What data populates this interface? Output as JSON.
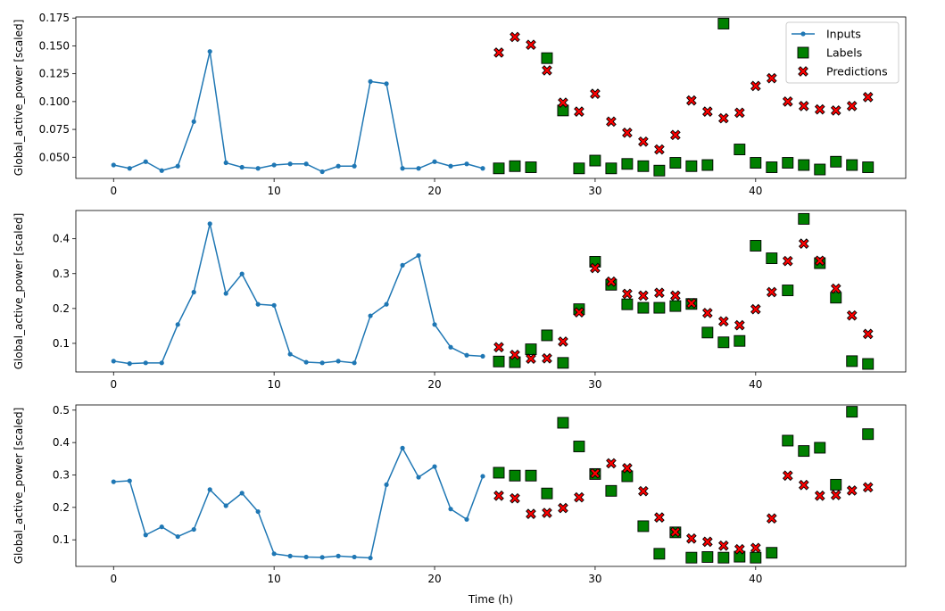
{
  "chart_data": [
    {
      "type": "line+scatter",
      "ylabel": "Global_active_power [scaled]",
      "xlabel": "",
      "xlim": [
        -2.35,
        49.35
      ],
      "ylim": [
        0.031,
        0.176
      ],
      "xticks": [
        0,
        10,
        20,
        30,
        40
      ],
      "yticks": [
        0.05,
        0.075,
        0.1,
        0.125,
        0.15,
        0.175
      ],
      "ytick_labels": [
        "0.050",
        "0.075",
        "0.100",
        "0.125",
        "0.150",
        "0.175"
      ],
      "legend": {
        "position": "top-right",
        "entries": [
          "Inputs",
          "Labels",
          "Predictions"
        ]
      },
      "series": [
        {
          "name": "Inputs",
          "kind": "line",
          "color": "#1f77b4",
          "x": [
            0,
            1,
            2,
            3,
            4,
            5,
            6,
            7,
            8,
            9,
            10,
            11,
            12,
            13,
            14,
            15,
            16,
            17,
            18,
            19,
            20,
            21,
            22,
            23
          ],
          "y": [
            0.043,
            0.04,
            0.046,
            0.038,
            0.042,
            0.082,
            0.145,
            0.045,
            0.041,
            0.04,
            0.043,
            0.044,
            0.044,
            0.037,
            0.042,
            0.042,
            0.118,
            0.116,
            0.04,
            0.04,
            0.046,
            0.042,
            0.044,
            0.04
          ]
        },
        {
          "name": "Labels",
          "kind": "square",
          "color": "#008000",
          "x": [
            24,
            25,
            26,
            27,
            28,
            29,
            30,
            31,
            32,
            33,
            34,
            35,
            36,
            37,
            38,
            39,
            40,
            41,
            42,
            43,
            44,
            45,
            46,
            47
          ],
          "y": [
            0.04,
            0.042,
            0.041,
            0.139,
            0.092,
            0.04,
            0.047,
            0.04,
            0.044,
            0.042,
            0.038,
            0.045,
            0.042,
            0.043,
            0.17,
            0.057,
            0.045,
            0.041,
            0.045,
            0.043,
            0.039,
            0.046,
            0.043,
            0.041
          ]
        },
        {
          "name": "Predictions",
          "kind": "x",
          "color": "#ff0000",
          "x": [
            24,
            25,
            26,
            27,
            28,
            29,
            30,
            31,
            32,
            33,
            34,
            35,
            36,
            37,
            38,
            39,
            40,
            41,
            42,
            43,
            44,
            45,
            46,
            47
          ],
          "y": [
            0.144,
            0.158,
            0.151,
            0.128,
            0.099,
            0.091,
            0.107,
            0.082,
            0.072,
            0.064,
            0.057,
            0.07,
            0.101,
            0.091,
            0.085,
            0.09,
            0.114,
            0.121,
            0.1,
            0.096,
            0.093,
            0.092,
            0.096,
            0.104
          ]
        }
      ]
    },
    {
      "type": "line+scatter",
      "ylabel": "Global_active_power [scaled]",
      "xlabel": "",
      "xlim": [
        -2.35,
        49.35
      ],
      "ylim": [
        0.018,
        0.481
      ],
      "xticks": [
        0,
        10,
        20,
        30,
        40
      ],
      "yticks": [
        0.1,
        0.2,
        0.3,
        0.4
      ],
      "ytick_labels": [
        "0.1",
        "0.2",
        "0.3",
        "0.4"
      ],
      "series": [
        {
          "name": "Inputs",
          "kind": "line",
          "color": "#1f77b4",
          "x": [
            0,
            1,
            2,
            3,
            4,
            5,
            6,
            7,
            8,
            9,
            10,
            11,
            12,
            13,
            14,
            15,
            16,
            17,
            18,
            19,
            20,
            21,
            22,
            23
          ],
          "y": [
            0.049,
            0.042,
            0.044,
            0.044,
            0.154,
            0.247,
            0.443,
            0.243,
            0.299,
            0.212,
            0.209,
            0.069,
            0.046,
            0.044,
            0.049,
            0.044,
            0.179,
            0.212,
            0.324,
            0.352,
            0.154,
            0.089,
            0.066,
            0.063
          ]
        },
        {
          "name": "Labels",
          "kind": "square",
          "color": "#008000",
          "x": [
            24,
            25,
            26,
            27,
            28,
            29,
            30,
            31,
            32,
            33,
            34,
            35,
            36,
            37,
            38,
            39,
            40,
            41,
            42,
            43,
            44,
            45,
            46,
            47
          ],
          "y": [
            0.048,
            0.046,
            0.083,
            0.123,
            0.044,
            0.198,
            0.334,
            0.268,
            0.212,
            0.202,
            0.202,
            0.207,
            0.213,
            0.131,
            0.103,
            0.107,
            0.38,
            0.344,
            0.252,
            0.457,
            0.33,
            0.231,
            0.049,
            0.041
          ]
        },
        {
          "name": "Predictions",
          "kind": "x",
          "color": "#ff0000",
          "x": [
            24,
            25,
            26,
            27,
            28,
            29,
            30,
            31,
            32,
            33,
            34,
            35,
            36,
            37,
            38,
            39,
            40,
            41,
            42,
            43,
            44,
            45,
            46,
            47
          ],
          "y": [
            0.089,
            0.067,
            0.056,
            0.057,
            0.105,
            0.189,
            0.316,
            0.277,
            0.242,
            0.237,
            0.245,
            0.237,
            0.215,
            0.187,
            0.163,
            0.152,
            0.198,
            0.247,
            0.336,
            0.386,
            0.337,
            0.257,
            0.18,
            0.127
          ]
        }
      ]
    },
    {
      "type": "line+scatter",
      "ylabel": "Global_active_power [scaled]",
      "xlabel": "Time (h)",
      "xlim": [
        -2.35,
        49.35
      ],
      "ylim": [
        0.018,
        0.516
      ],
      "xticks": [
        0,
        10,
        20,
        30,
        40
      ],
      "yticks": [
        0.1,
        0.2,
        0.3,
        0.4,
        0.5
      ],
      "ytick_labels": [
        "0.1",
        "0.2",
        "0.3",
        "0.4",
        "0.5"
      ],
      "series": [
        {
          "name": "Inputs",
          "kind": "line",
          "color": "#1f77b4",
          "x": [
            0,
            1,
            2,
            3,
            4,
            5,
            6,
            7,
            8,
            9,
            10,
            11,
            12,
            13,
            14,
            15,
            16,
            17,
            18,
            19,
            20,
            21,
            22,
            23
          ],
          "y": [
            0.279,
            0.282,
            0.115,
            0.14,
            0.11,
            0.132,
            0.255,
            0.205,
            0.244,
            0.187,
            0.057,
            0.05,
            0.047,
            0.046,
            0.05,
            0.047,
            0.044,
            0.27,
            0.383,
            0.293,
            0.326,
            0.195,
            0.163,
            0.296
          ]
        },
        {
          "name": "Labels",
          "kind": "square",
          "color": "#008000",
          "x": [
            24,
            25,
            26,
            27,
            28,
            29,
            30,
            31,
            32,
            33,
            34,
            35,
            36,
            37,
            38,
            39,
            40,
            41,
            42,
            43,
            44,
            45,
            46,
            47
          ],
          "y": [
            0.307,
            0.298,
            0.298,
            0.243,
            0.461,
            0.388,
            0.303,
            0.251,
            0.296,
            0.142,
            0.057,
            0.123,
            0.045,
            0.047,
            0.045,
            0.048,
            0.045,
            0.06,
            0.406,
            0.374,
            0.384,
            0.27,
            0.495,
            0.426
          ]
        },
        {
          "name": "Predictions",
          "kind": "x",
          "color": "#ff0000",
          "x": [
            24,
            25,
            26,
            27,
            28,
            29,
            30,
            31,
            32,
            33,
            34,
            35,
            36,
            37,
            38,
            39,
            40,
            41,
            42,
            43,
            44,
            45,
            46,
            47
          ],
          "y": [
            0.236,
            0.228,
            0.18,
            0.183,
            0.198,
            0.231,
            0.305,
            0.336,
            0.321,
            0.25,
            0.169,
            0.124,
            0.104,
            0.094,
            0.082,
            0.071,
            0.075,
            0.166,
            0.298,
            0.269,
            0.236,
            0.238,
            0.252,
            0.262
          ]
        }
      ]
    }
  ]
}
